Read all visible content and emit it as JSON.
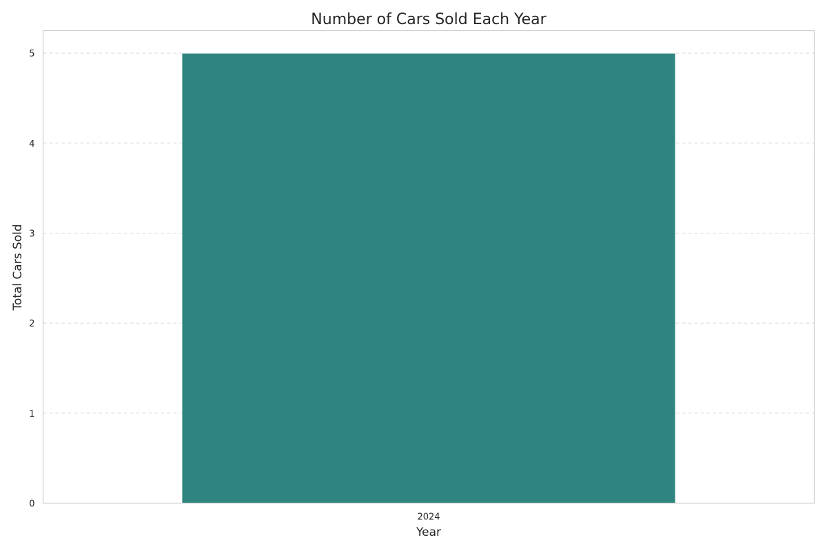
{
  "chart_data": {
    "type": "bar",
    "title": "Number of Cars Sold Each Year",
    "xlabel": "Year",
    "ylabel": "Total Cars Sold",
    "categories": [
      "2024"
    ],
    "values": [
      5
    ],
    "ylim": [
      0,
      5.25
    ],
    "yticks": [
      0,
      1,
      2,
      3,
      4,
      5
    ],
    "grid": "y-dashed",
    "bar_color": "#2e8580",
    "grid_color": "#d9d9d9",
    "frame_color": "#cccccc",
    "text_color": "#262626",
    "legend": "none"
  }
}
